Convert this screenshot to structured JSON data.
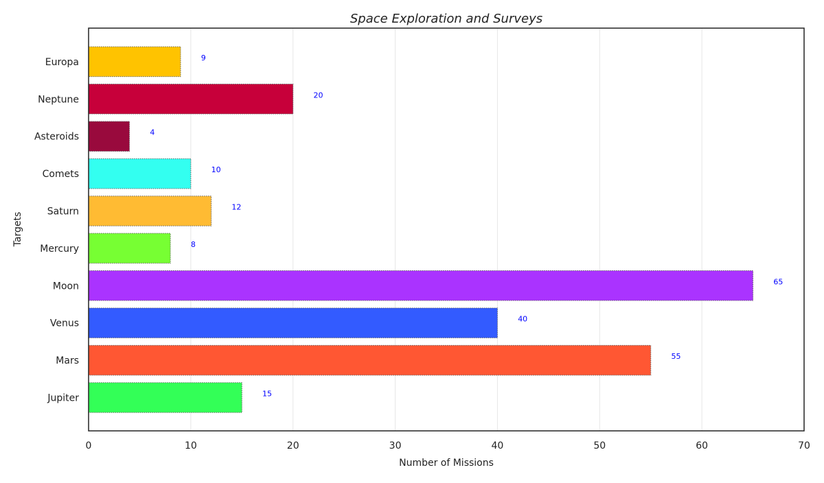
{
  "chart_data": {
    "type": "bar",
    "orientation": "horizontal",
    "title": "Space Exploration and Surveys",
    "xlabel": "Number of Missions",
    "ylabel": "Targets",
    "xlim": [
      0,
      70
    ],
    "xticks": [
      0,
      10,
      20,
      30,
      40,
      50,
      60,
      70
    ],
    "grid": "vertical",
    "categories": [
      "Jupiter",
      "Mars",
      "Venus",
      "Moon",
      "Mercury",
      "Saturn",
      "Comets",
      "Asteroids",
      "Neptune",
      "Europa"
    ],
    "values": [
      15,
      55,
      40,
      65,
      8,
      12,
      10,
      4,
      20,
      9
    ],
    "colors": [
      "#33ff57",
      "#ff5733",
      "#335bff",
      "#aa33ff",
      "#77ff33",
      "#ffbb33",
      "#33fff0",
      "#990a3d",
      "#c7003a",
      "#ffc300"
    ],
    "data_labels": [
      "15",
      "55",
      "40",
      "65",
      "8",
      "12",
      "10",
      "4",
      "20",
      "9"
    ],
    "data_label_color": "#0000ff"
  }
}
